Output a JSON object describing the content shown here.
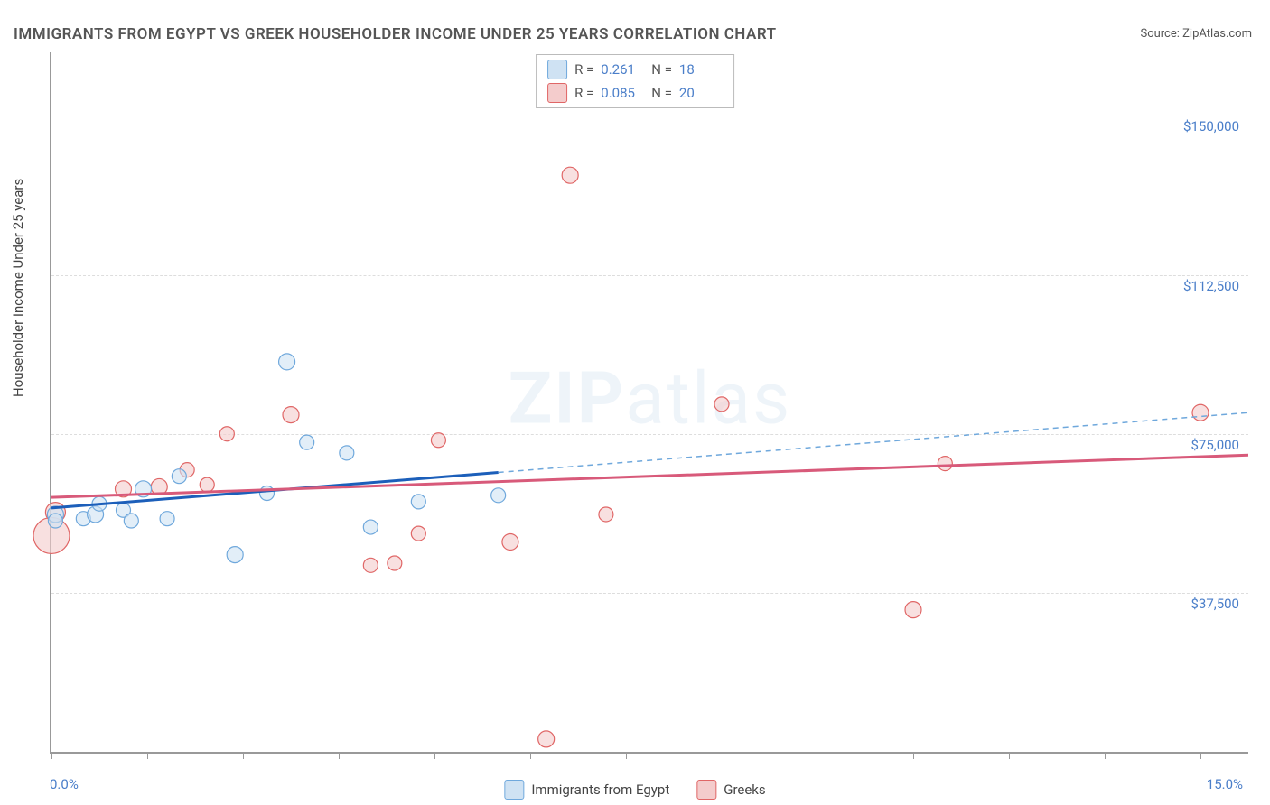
{
  "title": "IMMIGRANTS FROM EGYPT VS GREEK HOUSEHOLDER INCOME UNDER 25 YEARS CORRELATION CHART",
  "source": "Source: ZipAtlas.com",
  "ylabel": "Householder Income Under 25 years",
  "watermark_bold": "ZIP",
  "watermark_light": "atlas",
  "chart": {
    "type": "scatter-regression",
    "xlim": [
      0.0,
      15.0
    ],
    "ylim": [
      0,
      165000
    ],
    "xticks_pct": [
      0.0,
      1.2,
      2.4,
      3.6,
      4.8,
      6.0,
      7.2,
      10.8,
      12.0,
      13.2,
      14.4
    ],
    "x_label_min": "0.0%",
    "x_label_max": "15.0%",
    "y_gridlines": [
      37500,
      75000,
      112500,
      150000
    ],
    "y_labels": [
      "$37,500",
      "$75,000",
      "$112,500",
      "$150,000"
    ],
    "background_color": "#ffffff",
    "grid_color": "#dddddd",
    "axis_color": "#999999",
    "series": [
      {
        "key": "egypt",
        "label": "Immigrants from Egypt",
        "fill": "#cfe2f3",
        "stroke": "#6fa8dc",
        "line_solid": "#1c5fba",
        "line_dash": "#6fa8dc",
        "R": "0.261",
        "N": "18",
        "reg_y_at_xmin": 57500,
        "reg_y_at_xmax": 80000,
        "solid_end_x": 5.6,
        "points": [
          {
            "x": 0.05,
            "y": 56000,
            "r": 9
          },
          {
            "x": 0.05,
            "y": 54500,
            "r": 8
          },
          {
            "x": 0.4,
            "y": 55000,
            "r": 8
          },
          {
            "x": 0.55,
            "y": 56000,
            "r": 9
          },
          {
            "x": 0.6,
            "y": 58500,
            "r": 8
          },
          {
            "x": 0.9,
            "y": 57000,
            "r": 8
          },
          {
            "x": 1.0,
            "y": 54500,
            "r": 8
          },
          {
            "x": 1.15,
            "y": 62000,
            "r": 9
          },
          {
            "x": 1.45,
            "y": 55000,
            "r": 8
          },
          {
            "x": 1.6,
            "y": 65000,
            "r": 8
          },
          {
            "x": 2.3,
            "y": 46500,
            "r": 9
          },
          {
            "x": 2.7,
            "y": 61000,
            "r": 8
          },
          {
            "x": 2.95,
            "y": 92000,
            "r": 9
          },
          {
            "x": 3.2,
            "y": 73000,
            "r": 8
          },
          {
            "x": 3.7,
            "y": 70500,
            "r": 8
          },
          {
            "x": 4.0,
            "y": 53000,
            "r": 8
          },
          {
            "x": 4.6,
            "y": 59000,
            "r": 8
          },
          {
            "x": 5.6,
            "y": 60500,
            "r": 8
          }
        ]
      },
      {
        "key": "greeks",
        "label": "Greeks",
        "fill": "#f4cccc",
        "stroke": "#e06666",
        "line_solid": "#d85a7a",
        "line_dash": "#d85a7a",
        "R": "0.085",
        "N": "20",
        "reg_y_at_xmin": 60000,
        "reg_y_at_xmax": 70000,
        "solid_end_x": 15.0,
        "points": [
          {
            "x": 0.0,
            "y": 51000,
            "r": 20
          },
          {
            "x": 0.05,
            "y": 56500,
            "r": 11
          },
          {
            "x": 0.9,
            "y": 62000,
            "r": 9
          },
          {
            "x": 1.35,
            "y": 62500,
            "r": 9
          },
          {
            "x": 1.7,
            "y": 66500,
            "r": 8
          },
          {
            "x": 1.95,
            "y": 63000,
            "r": 8
          },
          {
            "x": 2.2,
            "y": 75000,
            "r": 8
          },
          {
            "x": 3.0,
            "y": 79500,
            "r": 9
          },
          {
            "x": 4.0,
            "y": 44000,
            "r": 8
          },
          {
            "x": 4.3,
            "y": 44500,
            "r": 8
          },
          {
            "x": 4.6,
            "y": 51500,
            "r": 8
          },
          {
            "x": 4.85,
            "y": 73500,
            "r": 8
          },
          {
            "x": 5.75,
            "y": 49500,
            "r": 9
          },
          {
            "x": 6.2,
            "y": 3000,
            "r": 9
          },
          {
            "x": 6.5,
            "y": 136000,
            "r": 9
          },
          {
            "x": 6.95,
            "y": 56000,
            "r": 8
          },
          {
            "x": 8.4,
            "y": 82000,
            "r": 8
          },
          {
            "x": 10.8,
            "y": 33500,
            "r": 9
          },
          {
            "x": 11.2,
            "y": 68000,
            "r": 8
          },
          {
            "x": 14.4,
            "y": 80000,
            "r": 9
          }
        ]
      }
    ]
  },
  "legend_top_rows": [
    {
      "swatch_fill": "#cfe2f3",
      "swatch_stroke": "#6fa8dc",
      "r_label": "R =",
      "r_val": "0.261",
      "n_label": "N =",
      "n_val": "18"
    },
    {
      "swatch_fill": "#f4cccc",
      "swatch_stroke": "#e06666",
      "r_label": "R =",
      "r_val": "0.085",
      "n_label": "N =",
      "n_val": "20"
    }
  ]
}
